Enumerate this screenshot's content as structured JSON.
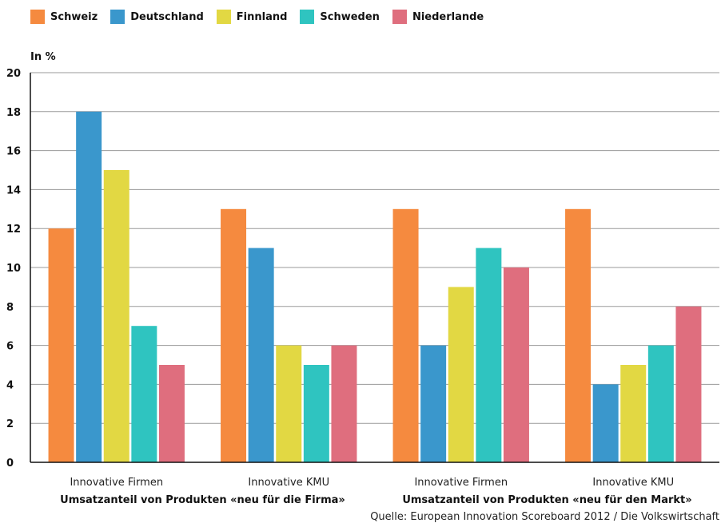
{
  "chart_data": {
    "type": "bar",
    "unit_label": "In %",
    "ylim": [
      0,
      20
    ],
    "yticks": [
      "0",
      "2",
      "4",
      "6",
      "8",
      "10",
      "12",
      "14",
      "16",
      "18",
      "20"
    ],
    "grid": true,
    "legend_position": "top-left",
    "categories": [
      "Innovative Firmen",
      "Innovative KMU",
      "Innovative Firmen",
      "Innovative KMU"
    ],
    "groups": [
      {
        "label": "Umsatzanteil von Produkten «neu für die Firma»",
        "categories": [
          0,
          1
        ]
      },
      {
        "label": "Umsatzanteil von Produkten «neu für den Markt»",
        "categories": [
          2,
          3
        ]
      }
    ],
    "series": [
      {
        "name": "Schweiz",
        "color": "#f58a3f",
        "values": [
          12,
          13,
          13,
          13
        ]
      },
      {
        "name": "Deutschland",
        "color": "#3a97cc",
        "values": [
          18,
          11,
          6,
          4
        ]
      },
      {
        "name": "Finnland",
        "color": "#e2d843",
        "values": [
          15,
          6,
          9,
          5
        ]
      },
      {
        "name": "Schweden",
        "color": "#2fc4c0",
        "values": [
          7,
          5,
          11,
          6
        ]
      },
      {
        "name": "Niederlande",
        "color": "#df6e7e",
        "values": [
          5,
          6,
          10,
          8
        ]
      }
    ],
    "source": "Quelle: European Innovation Scoreboard 2012 / Die Volkswirtschaft"
  }
}
